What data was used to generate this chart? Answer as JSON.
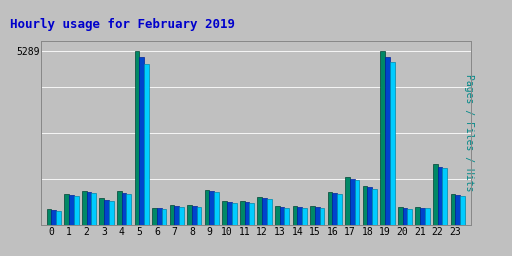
{
  "title": "Hourly usage for February 2019",
  "ylabel": "Pages / Files / Hits",
  "ytick_label": "5289",
  "hours": [
    0,
    1,
    2,
    3,
    4,
    5,
    6,
    7,
    8,
    9,
    10,
    11,
    12,
    13,
    14,
    15,
    16,
    17,
    18,
    19,
    20,
    21,
    22,
    23
  ],
  "pages": [
    500,
    950,
    1050,
    820,
    1030,
    5289,
    540,
    620,
    610,
    1080,
    730,
    750,
    860,
    590,
    590,
    590,
    1010,
    1480,
    1200,
    5289,
    560,
    570,
    1850,
    960
  ],
  "files": [
    470,
    910,
    1010,
    780,
    990,
    5100,
    510,
    590,
    580,
    1040,
    700,
    715,
    820,
    560,
    560,
    560,
    970,
    1420,
    1150,
    5100,
    530,
    540,
    1780,
    920
  ],
  "hits": [
    440,
    880,
    970,
    750,
    955,
    4900,
    480,
    560,
    550,
    1010,
    670,
    680,
    790,
    530,
    530,
    530,
    940,
    1380,
    1110,
    4950,
    500,
    510,
    1730,
    890
  ],
  "bar_color_green": "#008866",
  "bar_color_blue": "#0044cc",
  "bar_color_cyan": "#00ccff",
  "bg_color": "#c0c0c0",
  "plot_bg": "#c0c0c0",
  "title_color": "#0000cc",
  "ylabel_color": "#008888",
  "ymax": 5600,
  "ytick_val": 5289,
  "bar_width": 0.27,
  "grid_levels": [
    1400,
    2800,
    4200,
    5289
  ],
  "grid_color": "#aaaaaa"
}
